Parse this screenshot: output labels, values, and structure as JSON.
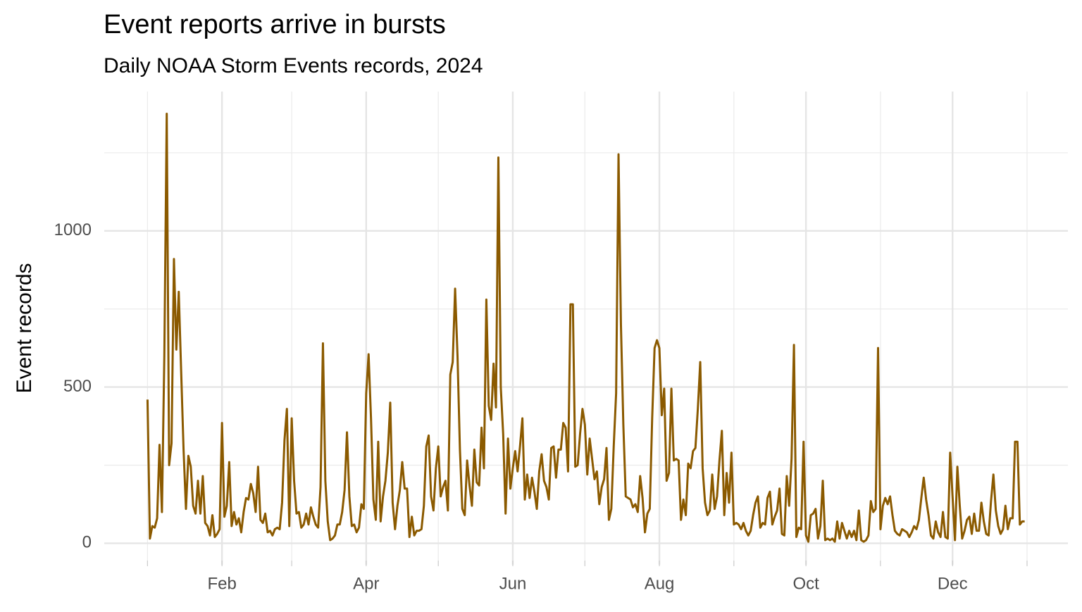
{
  "chart_data": {
    "type": "line",
    "title": "Event reports arrive in bursts",
    "subtitle": "Daily NOAA Storm Events records, 2024",
    "y_label": "Event records",
    "color": "#8b5a00",
    "grid": true,
    "xlim": [
      "2023-12-14",
      "2025-01-18"
    ],
    "xticks": [
      {
        "value": "2024-02-01",
        "label": "Feb"
      },
      {
        "value": "2024-04-01",
        "label": "Apr"
      },
      {
        "value": "2024-06-01",
        "label": "Jun"
      },
      {
        "value": "2024-08-01",
        "label": "Aug"
      },
      {
        "value": "2024-10-01",
        "label": "Oct"
      },
      {
        "value": "2024-12-01",
        "label": "Dec"
      }
    ],
    "minor_xticks": [
      "2024-01-01",
      "2024-03-01",
      "2024-05-01",
      "2024-07-01",
      "2024-09-01",
      "2024-11-01",
      "2025-01-01"
    ],
    "ylim": [
      -69,
      1446
    ],
    "yticks": [
      0,
      500,
      1000
    ],
    "minor_yticks": [
      250,
      750,
      1250
    ],
    "x": [
      "2024-01-01",
      "2024-01-02",
      "2024-01-03",
      "2024-01-04",
      "2024-01-05",
      "2024-01-06",
      "2024-01-07",
      "2024-01-08",
      "2024-01-09",
      "2024-01-10",
      "2024-01-11",
      "2024-01-12",
      "2024-01-13",
      "2024-01-14",
      "2024-01-15",
      "2024-01-16",
      "2024-01-17",
      "2024-01-18",
      "2024-01-19",
      "2024-01-20",
      "2024-01-21",
      "2024-01-22",
      "2024-01-23",
      "2024-01-24",
      "2024-01-25",
      "2024-01-26",
      "2024-01-27",
      "2024-01-28",
      "2024-01-29",
      "2024-01-30",
      "2024-01-31",
      "2024-02-01",
      "2024-02-02",
      "2024-02-03",
      "2024-02-04",
      "2024-02-05",
      "2024-02-06",
      "2024-02-07",
      "2024-02-08",
      "2024-02-09",
      "2024-02-10",
      "2024-02-11",
      "2024-02-12",
      "2024-02-13",
      "2024-02-14",
      "2024-02-15",
      "2024-02-16",
      "2024-02-17",
      "2024-02-18",
      "2024-02-19",
      "2024-02-20",
      "2024-02-21",
      "2024-02-22",
      "2024-02-23",
      "2024-02-24",
      "2024-02-25",
      "2024-02-26",
      "2024-02-27",
      "2024-02-28",
      "2024-02-29",
      "2024-03-01",
      "2024-03-02",
      "2024-03-03",
      "2024-03-04",
      "2024-03-05",
      "2024-03-06",
      "2024-03-07",
      "2024-03-08",
      "2024-03-09",
      "2024-03-10",
      "2024-03-11",
      "2024-03-12",
      "2024-03-13",
      "2024-03-14",
      "2024-03-15",
      "2024-03-16",
      "2024-03-17",
      "2024-03-18",
      "2024-03-19",
      "2024-03-20",
      "2024-03-21",
      "2024-03-22",
      "2024-03-23",
      "2024-03-24",
      "2024-03-25",
      "2024-03-26",
      "2024-03-27",
      "2024-03-28",
      "2024-03-29",
      "2024-03-30",
      "2024-03-31",
      "2024-04-01",
      "2024-04-02",
      "2024-04-03",
      "2024-04-04",
      "2024-04-05",
      "2024-04-06",
      "2024-04-07",
      "2024-04-08",
      "2024-04-09",
      "2024-04-10",
      "2024-04-11",
      "2024-04-12",
      "2024-04-13",
      "2024-04-14",
      "2024-04-15",
      "2024-04-16",
      "2024-04-17",
      "2024-04-18",
      "2024-04-19",
      "2024-04-20",
      "2024-04-21",
      "2024-04-22",
      "2024-04-23",
      "2024-04-24",
      "2024-04-25",
      "2024-04-26",
      "2024-04-27",
      "2024-04-28",
      "2024-04-29",
      "2024-04-30",
      "2024-05-01",
      "2024-05-02",
      "2024-05-03",
      "2024-05-04",
      "2024-05-05",
      "2024-05-06",
      "2024-05-07",
      "2024-05-08",
      "2024-05-09",
      "2024-05-10",
      "2024-05-11",
      "2024-05-12",
      "2024-05-13",
      "2024-05-14",
      "2024-05-15",
      "2024-05-16",
      "2024-05-17",
      "2024-05-18",
      "2024-05-19",
      "2024-05-20",
      "2024-05-21",
      "2024-05-22",
      "2024-05-23",
      "2024-05-24",
      "2024-05-25",
      "2024-05-26",
      "2024-05-27",
      "2024-05-28",
      "2024-05-29",
      "2024-05-30",
      "2024-05-31",
      "2024-06-01",
      "2024-06-02",
      "2024-06-03",
      "2024-06-04",
      "2024-06-05",
      "2024-06-06",
      "2024-06-07",
      "2024-06-08",
      "2024-06-09",
      "2024-06-10",
      "2024-06-11",
      "2024-06-12",
      "2024-06-13",
      "2024-06-14",
      "2024-06-15",
      "2024-06-16",
      "2024-06-17",
      "2024-06-18",
      "2024-06-19",
      "2024-06-20",
      "2024-06-21",
      "2024-06-22",
      "2024-06-23",
      "2024-06-24",
      "2024-06-25",
      "2024-06-26",
      "2024-06-27",
      "2024-06-28",
      "2024-06-29",
      "2024-06-30",
      "2024-07-01",
      "2024-07-02",
      "2024-07-03",
      "2024-07-04",
      "2024-07-05",
      "2024-07-06",
      "2024-07-07",
      "2024-07-08",
      "2024-07-09",
      "2024-07-10",
      "2024-07-11",
      "2024-07-12",
      "2024-07-13",
      "2024-07-14",
      "2024-07-15",
      "2024-07-16",
      "2024-07-17",
      "2024-07-18",
      "2024-07-19",
      "2024-07-20",
      "2024-07-21",
      "2024-07-22",
      "2024-07-23",
      "2024-07-24",
      "2024-07-25",
      "2024-07-26",
      "2024-07-27",
      "2024-07-28",
      "2024-07-29",
      "2024-07-30",
      "2024-07-31",
      "2024-08-01",
      "2024-08-02",
      "2024-08-03",
      "2024-08-04",
      "2024-08-05",
      "2024-08-06",
      "2024-08-07",
      "2024-08-08",
      "2024-08-09",
      "2024-08-10",
      "2024-08-11",
      "2024-08-12",
      "2024-08-13",
      "2024-08-14",
      "2024-08-15",
      "2024-08-16",
      "2024-08-17",
      "2024-08-18",
      "2024-08-19",
      "2024-08-20",
      "2024-08-21",
      "2024-08-22",
      "2024-08-23",
      "2024-08-24",
      "2024-08-25",
      "2024-08-26",
      "2024-08-27",
      "2024-08-28",
      "2024-08-29",
      "2024-08-30",
      "2024-08-31",
      "2024-09-01",
      "2024-09-02",
      "2024-09-03",
      "2024-09-04",
      "2024-09-05",
      "2024-09-06",
      "2024-09-07",
      "2024-09-08",
      "2024-09-09",
      "2024-09-10",
      "2024-09-11",
      "2024-09-12",
      "2024-09-13",
      "2024-09-14",
      "2024-09-15",
      "2024-09-16",
      "2024-09-17",
      "2024-09-18",
      "2024-09-19",
      "2024-09-20",
      "2024-09-21",
      "2024-09-22",
      "2024-09-23",
      "2024-09-24",
      "2024-09-25",
      "2024-09-26",
      "2024-09-27",
      "2024-09-28",
      "2024-09-29",
      "2024-09-30",
      "2024-10-01",
      "2024-10-02",
      "2024-10-03",
      "2024-10-04",
      "2024-10-05",
      "2024-10-06",
      "2024-10-07",
      "2024-10-08",
      "2024-10-09",
      "2024-10-10",
      "2024-10-11",
      "2024-10-12",
      "2024-10-13",
      "2024-10-14",
      "2024-10-15",
      "2024-10-16",
      "2024-10-17",
      "2024-10-18",
      "2024-10-19",
      "2024-10-20",
      "2024-10-21",
      "2024-10-22",
      "2024-10-23",
      "2024-10-24",
      "2024-10-25",
      "2024-10-26",
      "2024-10-27",
      "2024-10-28",
      "2024-10-29",
      "2024-10-30",
      "2024-10-31",
      "2024-11-01",
      "2024-11-02",
      "2024-11-03",
      "2024-11-04",
      "2024-11-05",
      "2024-11-06",
      "2024-11-07",
      "2024-11-08",
      "2024-11-09",
      "2024-11-10",
      "2024-11-11",
      "2024-11-12",
      "2024-11-13",
      "2024-11-14",
      "2024-11-15",
      "2024-11-16",
      "2024-11-17",
      "2024-11-18",
      "2024-11-19",
      "2024-11-20",
      "2024-11-21",
      "2024-11-22",
      "2024-11-23",
      "2024-11-24",
      "2024-11-25",
      "2024-11-26",
      "2024-11-27",
      "2024-11-28",
      "2024-11-29",
      "2024-11-30",
      "2024-12-01",
      "2024-12-02",
      "2024-12-03",
      "2024-12-04",
      "2024-12-05",
      "2024-12-06",
      "2024-12-07",
      "2024-12-08",
      "2024-12-09",
      "2024-12-10",
      "2024-12-11",
      "2024-12-12",
      "2024-12-13",
      "2024-12-14",
      "2024-12-15",
      "2024-12-16",
      "2024-12-17",
      "2024-12-18",
      "2024-12-19",
      "2024-12-20",
      "2024-12-21",
      "2024-12-22",
      "2024-12-23",
      "2024-12-24",
      "2024-12-25",
      "2024-12-26",
      "2024-12-27",
      "2024-12-28",
      "2024-12-29",
      "2024-12-30",
      "2024-12-31"
    ],
    "values": [
      460,
      15,
      55,
      50,
      80,
      315,
      100,
      600,
      1375,
      250,
      320,
      910,
      620,
      805,
      550,
      300,
      110,
      280,
      245,
      120,
      95,
      200,
      95,
      215,
      65,
      55,
      25,
      90,
      20,
      30,
      45,
      385,
      85,
      120,
      260,
      55,
      100,
      60,
      80,
      35,
      100,
      145,
      140,
      190,
      160,
      100,
      245,
      75,
      65,
      95,
      35,
      40,
      25,
      45,
      50,
      45,
      130,
      330,
      430,
      55,
      400,
      200,
      95,
      100,
      50,
      60,
      95,
      60,
      115,
      85,
      60,
      50,
      180,
      640,
      200,
      70,
      10,
      15,
      25,
      60,
      60,
      100,
      170,
      355,
      150,
      55,
      60,
      35,
      50,
      125,
      110,
      480,
      605,
      400,
      140,
      75,
      325,
      70,
      150,
      200,
      290,
      450,
      130,
      45,
      120,
      170,
      260,
      175,
      175,
      20,
      85,
      25,
      40,
      40,
      45,
      120,
      310,
      345,
      150,
      105,
      240,
      310,
      150,
      180,
      200,
      105,
      540,
      580,
      815,
      600,
      300,
      110,
      90,
      265,
      185,
      120,
      300,
      195,
      185,
      370,
      240,
      780,
      440,
      395,
      575,
      435,
      1235,
      500,
      350,
      95,
      335,
      175,
      240,
      295,
      230,
      310,
      400,
      140,
      220,
      145,
      210,
      165,
      110,
      230,
      285,
      200,
      180,
      140,
      305,
      310,
      210,
      300,
      300,
      385,
      370,
      230,
      765,
      765,
      245,
      250,
      350,
      430,
      380,
      220,
      335,
      270,
      205,
      230,
      125,
      180,
      205,
      305,
      75,
      110,
      310,
      480,
      1245,
      700,
      380,
      150,
      145,
      140,
      115,
      125,
      100,
      215,
      145,
      35,
      95,
      110,
      400,
      625,
      650,
      625,
      410,
      495,
      200,
      225,
      495,
      265,
      270,
      265,
      75,
      140,
      90,
      255,
      240,
      295,
      305,
      430,
      580,
      240,
      130,
      90,
      105,
      220,
      110,
      150,
      265,
      360,
      90,
      225,
      130,
      290,
      60,
      65,
      60,
      45,
      65,
      40,
      25,
      40,
      90,
      130,
      150,
      50,
      65,
      60,
      145,
      165,
      60,
      85,
      105,
      175,
      30,
      25,
      215,
      120,
      270,
      635,
      20,
      50,
      45,
      325,
      25,
      5,
      90,
      95,
      110,
      15,
      55,
      200,
      10,
      15,
      10,
      15,
      5,
      70,
      15,
      65,
      40,
      15,
      40,
      20,
      40,
      10,
      105,
      10,
      5,
      10,
      25,
      135,
      100,
      110,
      625,
      45,
      120,
      145,
      125,
      150,
      90,
      40,
      30,
      25,
      45,
      40,
      35,
      20,
      35,
      55,
      45,
      75,
      145,
      210,
      140,
      90,
      25,
      15,
      70,
      35,
      20,
      100,
      20,
      15,
      290,
      150,
      10,
      245,
      120,
      15,
      40,
      75,
      85,
      30,
      95,
      40,
      40,
      130,
      70,
      30,
      25,
      135,
      220,
      105,
      55,
      30,
      45,
      120,
      45,
      80,
      80,
      325,
      325,
      60,
      70,
      70
    ]
  }
}
